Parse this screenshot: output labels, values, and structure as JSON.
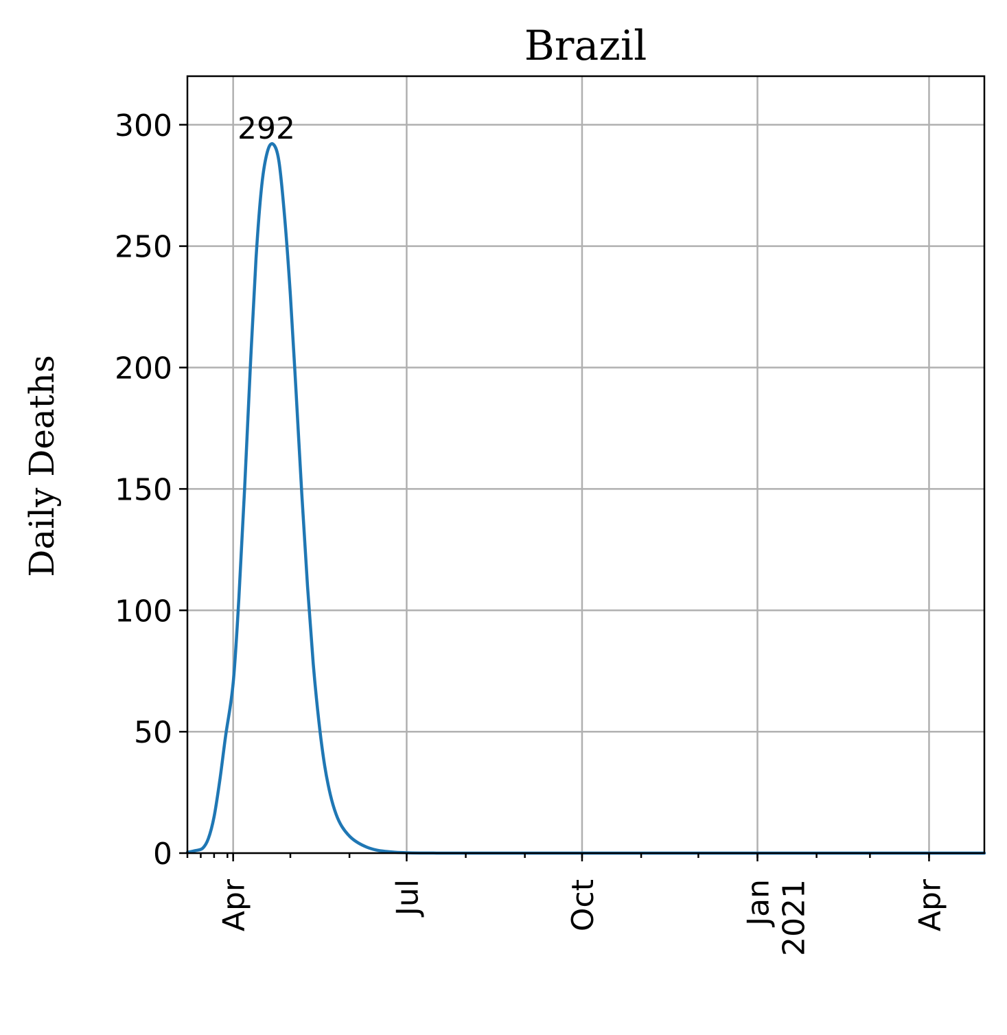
{
  "chart_data": {
    "type": "line",
    "title": "Brazil",
    "xlabel": "",
    "ylabel": "Daily Deaths",
    "x_axis_type": "date",
    "xlim": [
      "2020-03-08",
      "2021-04-30"
    ],
    "ylim": [
      0,
      320
    ],
    "y_ticks": [
      0,
      50,
      100,
      150,
      200,
      250,
      300
    ],
    "x_ticks": [
      {
        "date": "2020-04-01",
        "label": "Apr",
        "label2": ""
      },
      {
        "date": "2020-07-01",
        "label": "Jul",
        "label2": ""
      },
      {
        "date": "2020-10-01",
        "label": "Oct",
        "label2": ""
      },
      {
        "date": "2021-01-01",
        "label": "Jan",
        "label2": "2021"
      },
      {
        "date": "2021-04-01",
        "label": "Apr",
        "label2": ""
      }
    ],
    "grid": true,
    "color": "#1f77b4",
    "series": [
      {
        "x": [
          "2020-03-08",
          "2020-03-12",
          "2020-03-16",
          "2020-03-19",
          "2020-03-22",
          "2020-03-25",
          "2020-03-28",
          "2020-04-01",
          "2020-04-04",
          "2020-04-07",
          "2020-04-10",
          "2020-04-13",
          "2020-04-16",
          "2020-04-19",
          "2020-04-22",
          "2020-04-25",
          "2020-04-28",
          "2020-05-01",
          "2020-05-04",
          "2020-05-07",
          "2020-05-10",
          "2020-05-13",
          "2020-05-16",
          "2020-05-19",
          "2020-05-22",
          "2020-05-25",
          "2020-05-28",
          "2020-06-01",
          "2020-06-05",
          "2020-06-10",
          "2020-06-15",
          "2020-06-20",
          "2020-06-25",
          "2020-07-01",
          "2020-07-08",
          "2020-07-15",
          "2020-07-25",
          "2020-08-10",
          "2020-09-01",
          "2020-10-01",
          "2020-11-01",
          "2020-12-01",
          "2021-01-01",
          "2021-02-01",
          "2021-03-01",
          "2021-04-01",
          "2021-04-30"
        ],
        "y": [
          0.3,
          1,
          2,
          6,
          15,
          30,
          48,
          70,
          105,
          150,
          200,
          245,
          275,
          289,
          292,
          285,
          262,
          230,
          190,
          148,
          110,
          78,
          54,
          36,
          24,
          16,
          11,
          7,
          4.5,
          2.5,
          1.3,
          0.7,
          0.35,
          0.15,
          0.05,
          0.02,
          0,
          0,
          0,
          0,
          0,
          0,
          0,
          0,
          0,
          0,
          0
        ]
      }
    ],
    "annotations": [
      {
        "text": "292",
        "x": "2020-04-22",
        "y": 292
      }
    ]
  }
}
